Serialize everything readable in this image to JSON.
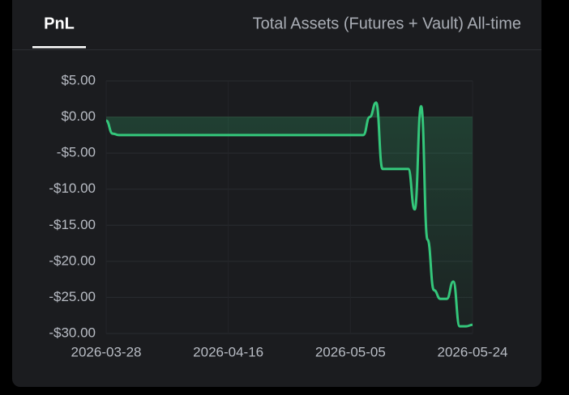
{
  "tabs": [
    "PnL",
    "Total Assets (Futures + Vault) All-time"
  ],
  "chart_data": {
    "type": "line",
    "x": [
      "2026-03-28",
      "2026-03-29",
      "2026-03-30",
      "2026-05-07",
      "2026-05-08",
      "2026-05-09",
      "2026-05-10",
      "2026-05-14",
      "2026-05-15",
      "2026-05-16",
      "2026-05-17",
      "2026-05-18",
      "2026-05-19",
      "2026-05-20",
      "2026-05-21",
      "2026-05-22",
      "2026-05-23",
      "2026-05-24"
    ],
    "series": [
      {
        "color": "#34c77b",
        "values": [
          -0.5,
          -2.3,
          -2.5,
          -2.5,
          0,
          2,
          -7.2,
          -7.2,
          -12.8,
          1.5,
          -17,
          -24,
          -25.2,
          -25.2,
          -22.8,
          -29,
          -29,
          -28.8
        ]
      }
    ],
    "xlim": [
      "2026-03-28",
      "2026-05-24"
    ],
    "xticks": [
      "2026-03-28",
      "2026-04-16",
      "2026-05-05",
      "2026-05-24"
    ],
    "ylim": [
      -30,
      5
    ],
    "yticks": [
      {
        "value": -30,
        "label": "-$30.00"
      },
      {
        "value": -25,
        "label": "-$25.00"
      },
      {
        "value": -20,
        "label": "-$20.00"
      },
      {
        "value": -15,
        "label": "-$15.00"
      },
      {
        "value": -10,
        "label": "-$10.00"
      },
      {
        "value": -5,
        "label": "-$5.00"
      },
      {
        "value": 0,
        "label": "$0.00"
      },
      {
        "value": 5,
        "label": "$5.00"
      }
    ],
    "grid": true
  }
}
